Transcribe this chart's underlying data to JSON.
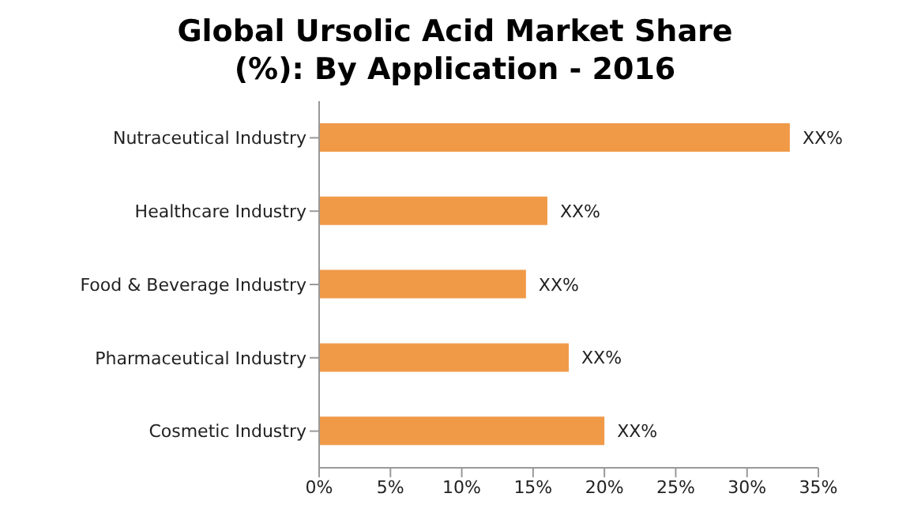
{
  "chart_data": {
    "type": "bar",
    "orientation": "horizontal",
    "title": "Global Ursolic Acid Market Share (%): By Application - 2016",
    "categories": [
      "Nutraceutical Industry",
      "Healthcare Industry",
      "Food & Beverage Industry",
      "Pharmaceutical Industry",
      "Cosmetic Industry"
    ],
    "values": [
      33,
      16,
      14.5,
      17.5,
      20
    ],
    "value_labels": [
      "XX%",
      "XX%",
      "XX%",
      "XX%",
      "XX%"
    ],
    "color": "#f09a48",
    "xlim": [
      0,
      35
    ],
    "xticks": [
      {
        "value": 0,
        "label": "0%"
      },
      {
        "value": 5,
        "label": "5%"
      },
      {
        "value": 10,
        "label": "10%"
      },
      {
        "value": 15,
        "label": "15%"
      },
      {
        "value": 20,
        "label": "20%"
      },
      {
        "value": 25,
        "label": "25%"
      },
      {
        "value": 30,
        "label": "30%"
      },
      {
        "value": 35,
        "label": "35%"
      }
    ],
    "grid": false,
    "legend": false
  }
}
